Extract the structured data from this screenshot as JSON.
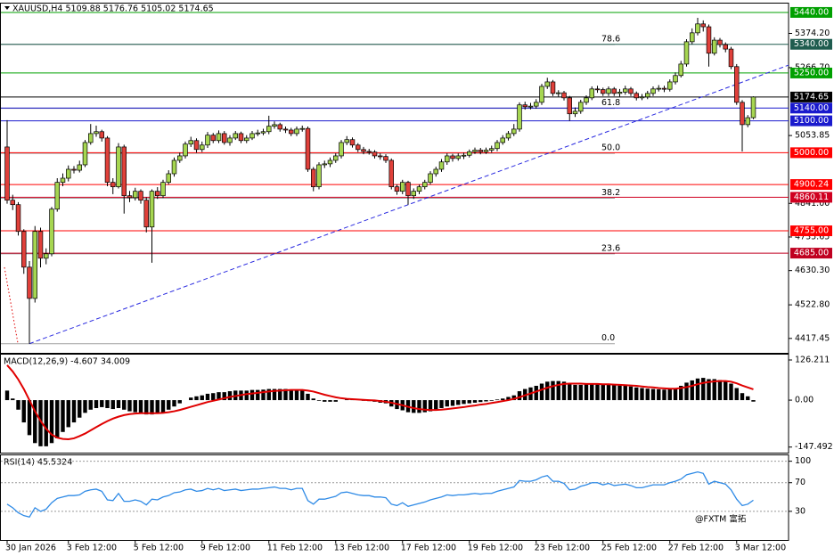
{
  "chart_data": [
    {
      "type": "candlestick",
      "title": "XAUUSD,H4  5109.88 5176.76 5105.02 5174.65",
      "up_color": "#a6d651",
      "down_color": "#e0403a",
      "categories": [
        "30 Jan 2026",
        null,
        null,
        null,
        null,
        null,
        null,
        null,
        null,
        null,
        null,
        "3 Feb 12:00",
        null,
        null,
        null,
        null,
        null,
        null,
        null,
        null,
        null,
        null,
        null,
        "5 Feb 12:00",
        null,
        null,
        null,
        null,
        null,
        null,
        null,
        null,
        null,
        null,
        null,
        "9 Feb 12:00",
        null,
        null,
        null,
        null,
        null,
        null,
        null,
        null,
        null,
        null,
        null,
        "11 Feb 12:00",
        null,
        null,
        null,
        null,
        null,
        null,
        null,
        null,
        null,
        null,
        null,
        "13 Feb 12:00",
        null,
        null,
        null,
        null,
        null,
        null,
        null,
        null,
        null,
        null,
        null,
        "17 Feb 12:00",
        null,
        null,
        null,
        null,
        null,
        null,
        null,
        null,
        null,
        null,
        null,
        "19 Feb 12:00",
        null,
        null,
        null,
        null,
        null,
        null,
        null,
        null,
        null,
        null,
        null,
        "23 Feb 12:00",
        null,
        null,
        null,
        null,
        null,
        null,
        null,
        null,
        null,
        null,
        null,
        "25 Feb 12:00",
        null,
        null,
        null,
        null,
        null,
        null,
        null,
        null,
        null,
        null,
        null,
        "27 Feb 12:00",
        null,
        null,
        null,
        null,
        null,
        null,
        null,
        null,
        null,
        null,
        null,
        "3 Mar 12:00",
        null,
        null,
        null
      ],
      "open": [
        5018,
        4851,
        4837,
        4753,
        4641,
        4543,
        4753,
        4669,
        4683,
        4823,
        4907,
        4920,
        4948,
        4945,
        4962,
        5032,
        5060,
        5066,
        5046,
        4907,
        4893,
        5018,
        4865,
        4859,
        4879,
        4851,
        4767,
        4879,
        4865,
        4907,
        4934,
        4976,
        4990,
        5027,
        5038,
        5010,
        5024,
        5055,
        5038,
        5060,
        5032,
        5046,
        5060,
        5038,
        5046,
        5060,
        5062,
        5066,
        5083,
        5088,
        5074,
        5071,
        5060,
        5074,
        5076,
        4948,
        4893,
        4962,
        4965,
        4976,
        4990,
        5032,
        5041,
        5024,
        5010,
        5004,
        5002,
        4990,
        4988,
        4976,
        4893,
        4879,
        4907,
        4865,
        4879,
        4893,
        4907,
        4934,
        4948,
        4971,
        4990,
        4982,
        4990,
        4992,
        5003,
        5008,
        5003,
        5008,
        5013,
        5032,
        5046,
        5060,
        5074,
        5150,
        5144,
        5146,
        5158,
        5208,
        5222,
        5186,
        5188,
        5172,
        5122,
        5130,
        5158,
        5172,
        5200,
        5198,
        5186,
        5200,
        5186,
        5190,
        5200,
        5186,
        5172,
        5175,
        5186,
        5200,
        5202,
        5199,
        5222,
        5242,
        5278,
        5348,
        5376,
        5404,
        5395,
        5312,
        5353,
        5339,
        5325,
        5270,
        5158,
        5088,
        5109.88
      ],
      "high": [
        5102,
        4868,
        4845,
        4760,
        4660,
        4770,
        4765,
        4700,
        4830,
        4920,
        4935,
        4960,
        4958,
        4975,
        5040,
        5090,
        5085,
        5072,
        5052,
        4920,
        5030,
        5025,
        4880,
        4890,
        4885,
        4860,
        4885,
        4892,
        4915,
        4945,
        4985,
        5000,
        5035,
        5050,
        5045,
        5035,
        5065,
        5062,
        5070,
        5068,
        5055,
        5068,
        5066,
        5055,
        5068,
        5072,
        5075,
        5116,
        5098,
        5094,
        5082,
        5078,
        5082,
        5085,
        5082,
        4955,
        4970,
        4975,
        4985,
        4998,
        5040,
        5052,
        5048,
        5030,
        5018,
        5012,
        5008,
        4998,
        4995,
        4982,
        4900,
        4915,
        4912,
        4888,
        4900,
        4915,
        4942,
        4956,
        4980,
        4998,
        4996,
        4998,
        5000,
        5010,
        5016,
        5015,
        5016,
        5022,
        5040,
        5055,
        5068,
        5090,
        5158,
        5160,
        5156,
        5168,
        5216,
        5235,
        5228,
        5196,
        5194,
        5178,
        5142,
        5166,
        5180,
        5208,
        5210,
        5204,
        5208,
        5206,
        5200,
        5210,
        5206,
        5192,
        5184,
        5194,
        5208,
        5212,
        5210,
        5230,
        5252,
        5288,
        5356,
        5390,
        5423,
        5415,
        5402,
        5362,
        5360,
        5346,
        5332,
        5278,
        5165,
        5118,
        5176.76
      ],
      "low": [
        4840,
        4820,
        4740,
        4620,
        4401,
        4530,
        4640,
        4650,
        4675,
        4815,
        4895,
        4910,
        4935,
        4938,
        4955,
        5025,
        5050,
        5035,
        4895,
        4870,
        4888,
        4809,
        4845,
        4850,
        4840,
        4750,
        4655,
        4855,
        4858,
        4900,
        4925,
        4968,
        4982,
        5018,
        5000,
        5002,
        5015,
        5030,
        5030,
        5025,
        5022,
        5040,
        5030,
        5030,
        5040,
        5052,
        5055,
        5058,
        5075,
        5066,
        5062,
        5052,
        5052,
        5066,
        4940,
        4879,
        4885,
        4952,
        4955,
        4968,
        4982,
        5024,
        5016,
        5002,
        4995,
        4994,
        4982,
        4978,
        4968,
        4885,
        4868,
        4870,
        4837,
        4855,
        4870,
        4885,
        4900,
        4925,
        4940,
        4962,
        4972,
        4975,
        4980,
        4985,
        4996,
        4995,
        4996,
        5000,
        5005,
        5025,
        5038,
        5052,
        5066,
        5135,
        5136,
        5138,
        5150,
        5200,
        5178,
        5176,
        5164,
        5100,
        5112,
        5122,
        5150,
        5165,
        5188,
        5178,
        5178,
        5178,
        5176,
        5182,
        5178,
        5164,
        5165,
        5168,
        5178,
        5192,
        5190,
        5192,
        5214,
        5236,
        5270,
        5340,
        5368,
        5380,
        5270,
        5305,
        5330,
        5315,
        5262,
        5150,
        5004,
        5080,
        5105.02
      ],
      "close": [
        4851,
        4837,
        4753,
        4641,
        4543,
        4753,
        4669,
        4683,
        4823,
        4907,
        4920,
        4948,
        4945,
        4962,
        5032,
        5060,
        5066,
        5046,
        4907,
        4893,
        5018,
        4865,
        4859,
        4879,
        4851,
        4767,
        4879,
        4865,
        4907,
        4934,
        4976,
        4990,
        5027,
        5038,
        5010,
        5024,
        5055,
        5038,
        5060,
        5032,
        5046,
        5060,
        5038,
        5046,
        5060,
        5062,
        5066,
        5083,
        5088,
        5074,
        5071,
        5060,
        5074,
        5076,
        4948,
        4893,
        4962,
        4965,
        4976,
        4990,
        5032,
        5041,
        5024,
        5010,
        5004,
        5002,
        4990,
        4988,
        4976,
        4893,
        4879,
        4907,
        4865,
        4879,
        4893,
        4907,
        4934,
        4948,
        4971,
        4990,
        4982,
        4990,
        4992,
        5003,
        5008,
        5003,
        5008,
        5013,
        5032,
        5046,
        5060,
        5074,
        5150,
        5144,
        5146,
        5158,
        5208,
        5222,
        5186,
        5188,
        5172,
        5122,
        5130,
        5158,
        5172,
        5200,
        5198,
        5186,
        5200,
        5186,
        5190,
        5200,
        5186,
        5172,
        5175,
        5186,
        5200,
        5202,
        5199,
        5222,
        5242,
        5278,
        5348,
        5376,
        5404,
        5395,
        5312,
        5353,
        5339,
        5325,
        5270,
        5158,
        5088,
        5109.88,
        5174.65
      ],
      "ylim": [
        4375,
        5465
      ],
      "yticks": [
        {
          "value": 5374.2,
          "label": "5374.20"
        },
        {
          "value": 5266.7,
          "label": "5266.70"
        },
        {
          "value": 5053.85,
          "label": "5053.85"
        },
        {
          "value": 4841,
          "label": "4841.00"
        },
        {
          "value": 4735.65,
          "label": "4735.65"
        },
        {
          "value": 4630.3,
          "label": "4630.30"
        },
        {
          "value": 4522.8,
          "label": "4522.80"
        },
        {
          "value": 4417.45,
          "label": "4417.45"
        }
      ],
      "levels": [
        {
          "value": 5440,
          "label": "5440.00",
          "color": "#00a000"
        },
        {
          "value": 5340,
          "label": "5340.00",
          "color": "#1f5c4f"
        },
        {
          "value": 5250,
          "label": "5250.00",
          "color": "#00a000"
        },
        {
          "value": 5174.65,
          "label": "5174.65",
          "color": "#000000"
        },
        {
          "value": 5140,
          "label": "5140.00",
          "color": "#1a1acd"
        },
        {
          "value": 5100,
          "label": "5100.00",
          "color": "#1a1acd"
        },
        {
          "value": 5000,
          "label": "5000.00",
          "color": "#ff0000"
        },
        {
          "value": 4900.24,
          "label": "4900.24",
          "color": "#ff0000"
        },
        {
          "value": 4860.11,
          "label": "4860.11",
          "color": "#d00020"
        },
        {
          "value": 4755,
          "label": "4755.00",
          "color": "#ff0000"
        },
        {
          "value": 4685,
          "label": "4685.00",
          "color": "#c00020"
        }
      ],
      "fib": {
        "from": 4401,
        "to": 5595,
        "color": "#1f1f7a",
        "levels": [
          78.6,
          61.8,
          {
            "value": 50,
            "label": "50.0"
          },
          38.2,
          23.6,
          {
            "value": 0,
            "label": "0.0"
          }
        ]
      },
      "trendline": {
        "x": [
          4,
          141
        ],
        "y": [
          4401,
          5279
        ],
        "color": "#2a2ae0"
      }
    },
    {
      "type": "macd",
      "title": "MACD(12,26,9) -4.607 34.009",
      "ylim": [
        -165,
        143
      ],
      "yticks": [
        126.211,
        {
          "value": 0,
          "label": "0.00"
        },
        -147.492
      ],
      "histogram": {
        "color": "#000000",
        "values": [
          30,
          5,
          -30,
          -70,
          -110,
          -135,
          -145,
          -145,
          -135,
          -120,
          -100,
          -85,
          -70,
          -55,
          -40,
          -30,
          -25,
          -22,
          -25,
          -28,
          -25,
          -30,
          -35,
          -38,
          -40,
          -45,
          -45,
          -42,
          -38,
          -30,
          -20,
          -10,
          0,
          8,
          12,
          15,
          20,
          22,
          25,
          25,
          28,
          30,
          30,
          30,
          32,
          32,
          33,
          35,
          35,
          35,
          35,
          33,
          32,
          32,
          20,
          5,
          -2,
          -5,
          -5,
          -5,
          0,
          2,
          2,
          0,
          -2,
          -3,
          -5,
          -8,
          -10,
          -20,
          -28,
          -32,
          -38,
          -40,
          -40,
          -38,
          -35,
          -30,
          -25,
          -20,
          -18,
          -15,
          -12,
          -10,
          -8,
          -6,
          -4,
          -2,
          2,
          5,
          10,
          15,
          28,
          35,
          40,
          45,
          52,
          58,
          60,
          60,
          58,
          52,
          48,
          48,
          50,
          52,
          52,
          50,
          50,
          48,
          46,
          45,
          43,
          40,
          38,
          36,
          35,
          34,
          33,
          35,
          38,
          45,
          55,
          62,
          68,
          70,
          66,
          66,
          63,
          60,
          52,
          38,
          22,
          12,
          -4.607
        ]
      },
      "signal": {
        "color": "#e00000",
        "values": [
          110,
          90,
          65,
          35,
          0,
          -35,
          -65,
          -90,
          -108,
          -118,
          -122,
          -123,
          -120,
          -113,
          -105,
          -95,
          -85,
          -75,
          -66,
          -58,
          -52,
          -47,
          -44,
          -42,
          -41,
          -41,
          -41,
          -41,
          -40,
          -38,
          -35,
          -31,
          -26,
          -21,
          -16,
          -11,
          -6,
          -2,
          2,
          6,
          10,
          13,
          16,
          19,
          21,
          23,
          25,
          27,
          29,
          30,
          31,
          32,
          32,
          32,
          30,
          27,
          22,
          17,
          13,
          9,
          6,
          4,
          3,
          2,
          1,
          0,
          -1,
          -3,
          -5,
          -8,
          -12,
          -16,
          -21,
          -25,
          -28,
          -30,
          -31,
          -31,
          -30,
          -28,
          -26,
          -24,
          -22,
          -19,
          -17,
          -14,
          -12,
          -9,
          -6,
          -3,
          0,
          4,
          9,
          15,
          21,
          27,
          33,
          39,
          44,
          48,
          51,
          52,
          52,
          52,
          51,
          51,
          51,
          50,
          50,
          49,
          48,
          47,
          46,
          45,
          43,
          41,
          40,
          38,
          37,
          36,
          36,
          38,
          41,
          45,
          50,
          54,
          57,
          59,
          60,
          60,
          58,
          53,
          46,
          40,
          34.009
        ]
      }
    },
    {
      "type": "line",
      "title": "RSI(14) 45.5324",
      "color": "#2e8ae6",
      "ylim": [
        -10,
        107
      ],
      "yticks": [
        100,
        70,
        30
      ],
      "grid": true,
      "values": [
        40,
        35,
        28,
        24,
        22,
        35,
        30,
        33,
        42,
        48,
        50,
        52,
        52,
        53,
        58,
        60,
        61,
        58,
        46,
        45,
        55,
        44,
        44,
        46,
        44,
        39,
        47,
        46,
        50,
        52,
        56,
        57,
        60,
        61,
        58,
        59,
        62,
        60,
        62,
        59,
        60,
        61,
        59,
        60,
        61,
        61,
        62,
        63,
        64,
        62,
        62,
        60,
        62,
        62,
        45,
        40,
        47,
        47,
        49,
        51,
        56,
        57,
        55,
        53,
        52,
        52,
        50,
        50,
        49,
        40,
        38,
        42,
        37,
        39,
        41,
        43,
        46,
        48,
        50,
        53,
        52,
        53,
        53,
        54,
        55,
        54,
        55,
        55,
        58,
        60,
        62,
        64,
        73,
        72,
        72,
        74,
        78,
        80,
        72,
        72,
        69,
        60,
        61,
        65,
        67,
        70,
        70,
        67,
        69,
        66,
        67,
        68,
        66,
        63,
        63,
        65,
        67,
        67,
        67,
        70,
        72,
        75,
        81,
        83,
        85,
        83,
        68,
        72,
        70,
        68,
        60,
        47,
        38,
        40,
        45.5324
      ]
    }
  ],
  "watermark": "@FXTM 富拓"
}
